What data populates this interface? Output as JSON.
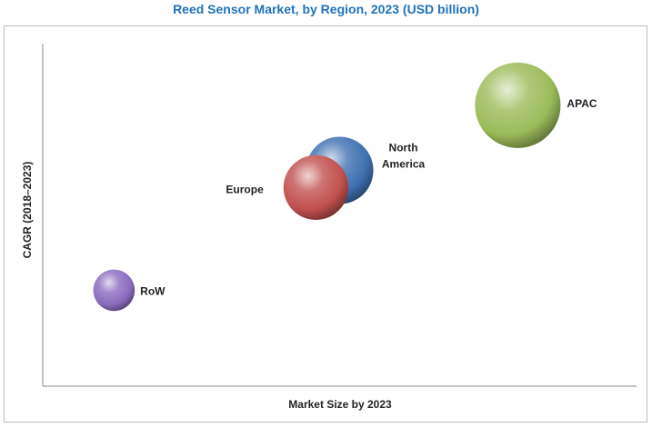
{
  "chart_data": {
    "type": "scatter",
    "title": "Reed Sensor Market, by Region, 2023 (USD billion)",
    "xlabel": "Market Size by 2023",
    "ylabel": "CAGR (2018–2023)",
    "xlim": [
      0,
      10
    ],
    "ylim": [
      0,
      10
    ],
    "grid": false,
    "legend": "none",
    "series": [
      {
        "label": "RoW",
        "x": 1.2,
        "y": 2.8,
        "size": 0.8,
        "color": "#8a6bbf",
        "label_lines": [
          "RoW"
        ]
      },
      {
        "label": "North America",
        "x": 5.0,
        "y": 6.3,
        "size": 1.3,
        "color": "#3f70b0",
        "label_lines": [
          "North",
          "America"
        ]
      },
      {
        "label": "Europe",
        "x": 4.6,
        "y": 5.8,
        "size": 1.25,
        "color": "#c0504d",
        "label_lines": [
          "Europe"
        ]
      },
      {
        "label": "APAC",
        "x": 8.0,
        "y": 8.2,
        "size": 1.65,
        "color": "#9bbb59",
        "label_lines": [
          "APAC"
        ]
      }
    ]
  }
}
